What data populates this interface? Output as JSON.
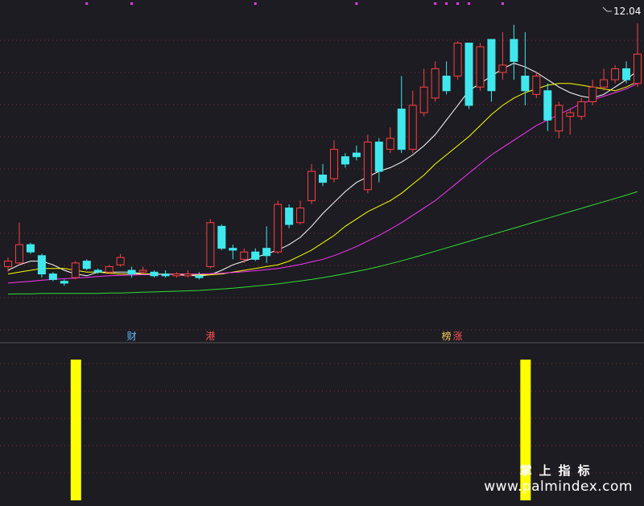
{
  "chart_data": [
    {
      "type": "candlestick",
      "title": "",
      "price_label": "12.04",
      "colors": {
        "up": "#ff4040",
        "down": "#40e8ee",
        "ma5": "#ffffff",
        "ma10": "#ffff00",
        "ma20": "#ff33ff",
        "ma60": "#33dd33",
        "background": "#1c1c22",
        "grid": "#8a2a2a"
      },
      "ylim": [
        3.5,
        12.5
      ],
      "x": [
        1,
        2,
        3,
        4,
        5,
        6,
        7,
        8,
        9,
        10,
        11,
        12,
        13,
        14,
        15,
        16,
        17,
        18,
        19,
        20,
        21,
        22,
        23,
        24,
        25,
        26,
        27,
        28,
        29,
        30,
        31,
        32,
        33,
        34,
        35,
        36,
        37,
        38,
        39,
        40,
        41,
        42,
        43,
        44,
        45,
        46,
        47,
        48,
        49,
        50,
        51,
        52,
        53,
        54,
        55,
        56,
        57
      ],
      "candles": [
        [
          5.4,
          5.55,
          5.25,
          5.65
        ],
        [
          5.5,
          6.0,
          5.45,
          6.6
        ],
        [
          6.0,
          5.8,
          5.75,
          6.05
        ],
        [
          5.7,
          5.2,
          5.1,
          5.75
        ],
        [
          5.2,
          5.05,
          5.0,
          5.25
        ],
        [
          5.0,
          4.95,
          4.88,
          5.05
        ],
        [
          5.1,
          5.5,
          5.05,
          5.55
        ],
        [
          5.55,
          5.35,
          5.3,
          5.6
        ],
        [
          5.3,
          5.25,
          5.2,
          5.35
        ],
        [
          5.25,
          5.4,
          5.2,
          5.45
        ],
        [
          5.45,
          5.65,
          5.4,
          5.75
        ],
        [
          5.3,
          5.2,
          5.1,
          5.4
        ],
        [
          5.25,
          5.3,
          5.2,
          5.4
        ],
        [
          5.25,
          5.15,
          5.1,
          5.3
        ],
        [
          5.2,
          5.15,
          5.1,
          5.3
        ],
        [
          5.15,
          5.2,
          5.1,
          5.25
        ],
        [
          5.15,
          5.2,
          5.1,
          5.3
        ],
        [
          5.15,
          5.1,
          5.05,
          5.25
        ],
        [
          5.4,
          6.6,
          5.35,
          6.7
        ],
        [
          6.5,
          5.9,
          5.85,
          6.55
        ],
        [
          5.9,
          5.85,
          5.6,
          6.0
        ],
        [
          5.6,
          5.8,
          5.5,
          5.9
        ],
        [
          5.8,
          5.6,
          5.55,
          5.9
        ],
        [
          5.9,
          5.7,
          5.5,
          6.5
        ],
        [
          5.8,
          7.1,
          5.75,
          7.2
        ],
        [
          7.0,
          6.55,
          6.45,
          7.1
        ],
        [
          6.6,
          7.0,
          6.55,
          7.2
        ],
        [
          7.2,
          8.0,
          7.1,
          8.2
        ],
        [
          7.9,
          7.7,
          7.6,
          8.2
        ],
        [
          7.8,
          8.6,
          7.7,
          8.85
        ],
        [
          8.4,
          8.2,
          8.1,
          8.5
        ],
        [
          8.5,
          8.4,
          8.3,
          8.7
        ],
        [
          7.5,
          8.8,
          7.4,
          9.0
        ],
        [
          8.8,
          8.0,
          7.7,
          8.9
        ],
        [
          8.6,
          8.9,
          8.5,
          9.2
        ],
        [
          9.7,
          8.6,
          8.5,
          10.6
        ],
        [
          8.6,
          9.8,
          8.5,
          10.2
        ],
        [
          9.6,
          10.3,
          9.5,
          10.8
        ],
        [
          10.0,
          10.8,
          9.9,
          11.0
        ],
        [
          10.6,
          10.2,
          10.1,
          11.0
        ],
        [
          10.6,
          11.5,
          10.5,
          11.55
        ],
        [
          11.5,
          9.8,
          9.7,
          11.5
        ],
        [
          10.3,
          11.4,
          10.2,
          11.5
        ],
        [
          11.6,
          10.2,
          9.9,
          11.6
        ],
        [
          10.7,
          10.9,
          10.5,
          11.8
        ],
        [
          11.6,
          11.0,
          10.5,
          12.0
        ],
        [
          10.6,
          10.2,
          9.8,
          11.8
        ],
        [
          10.1,
          10.6,
          10.0,
          10.7
        ],
        [
          10.2,
          9.4,
          9.1,
          10.4
        ],
        [
          9.1,
          9.8,
          8.9,
          9.9
        ],
        [
          9.5,
          9.6,
          9.0,
          9.7
        ],
        [
          9.5,
          9.9,
          9.4,
          10.0
        ],
        [
          9.9,
          10.3,
          9.8,
          10.5
        ],
        [
          10.3,
          10.5,
          10.2,
          10.8
        ],
        [
          10.5,
          10.8,
          10.4,
          10.9
        ],
        [
          10.8,
          10.5,
          10.4,
          11.0
        ],
        [
          10.4,
          11.2,
          10.3,
          12.04
        ]
      ],
      "series": [
        {
          "key": "ma5",
          "values": [
            5.3,
            5.45,
            5.55,
            5.55,
            5.45,
            5.3,
            5.2,
            5.15,
            5.25,
            5.25,
            5.25,
            5.25,
            5.2,
            5.2,
            5.2,
            5.18,
            5.16,
            5.15,
            5.18,
            5.3,
            5.45,
            5.55,
            5.65,
            5.75,
            5.85,
            6.0,
            6.2,
            6.5,
            6.85,
            7.15,
            7.45,
            7.7,
            7.85,
            8.0,
            8.1,
            8.25,
            8.45,
            8.7,
            9.0,
            9.4,
            9.8,
            10.2,
            10.4,
            10.6,
            10.8,
            10.95,
            10.85,
            10.7,
            10.5,
            10.3,
            10.15,
            10.05,
            10.0,
            10.1,
            10.3,
            10.5,
            10.75
          ]
        },
        {
          "key": "ma10",
          "values": [
            5.2,
            5.25,
            5.3,
            5.35,
            5.35,
            5.35,
            5.3,
            5.25,
            5.25,
            5.22,
            5.2,
            5.2,
            5.2,
            5.2,
            5.2,
            5.2,
            5.19,
            5.18,
            5.18,
            5.2,
            5.25,
            5.3,
            5.35,
            5.4,
            5.45,
            5.55,
            5.7,
            5.85,
            6.05,
            6.25,
            6.5,
            6.7,
            6.9,
            7.05,
            7.2,
            7.4,
            7.65,
            7.9,
            8.2,
            8.45,
            8.7,
            8.95,
            9.25,
            9.55,
            9.8,
            10.0,
            10.15,
            10.25,
            10.35,
            10.4,
            10.4,
            10.35,
            10.3,
            10.25,
            10.2,
            10.3,
            10.45
          ]
        },
        {
          "key": "ma20",
          "values": [
            4.95,
            4.98,
            5.0,
            5.03,
            5.05,
            5.07,
            5.09,
            5.11,
            5.13,
            5.15,
            5.16,
            5.17,
            5.18,
            5.18,
            5.19,
            5.19,
            5.2,
            5.2,
            5.21,
            5.22,
            5.24,
            5.26,
            5.29,
            5.32,
            5.35,
            5.4,
            5.46,
            5.53,
            5.6,
            5.7,
            5.82,
            5.95,
            6.1,
            6.25,
            6.42,
            6.6,
            6.8,
            7.0,
            7.2,
            7.45,
            7.7,
            7.95,
            8.2,
            8.45,
            8.65,
            8.85,
            9.05,
            9.25,
            9.4,
            9.55,
            9.7,
            9.85,
            9.95,
            10.05,
            10.15,
            10.25,
            10.4
          ]
        },
        {
          "key": "ma60",
          "values": [
            4.65,
            4.66,
            4.66,
            4.67,
            4.67,
            4.67,
            4.67,
            4.67,
            4.67,
            4.68,
            4.68,
            4.69,
            4.7,
            4.71,
            4.72,
            4.73,
            4.74,
            4.75,
            4.77,
            4.79,
            4.81,
            4.84,
            4.87,
            4.9,
            4.93,
            4.97,
            5.01,
            5.05,
            5.1,
            5.15,
            5.21,
            5.27,
            5.33,
            5.4,
            5.48,
            5.56,
            5.64,
            5.73,
            5.82,
            5.91,
            6.0,
            6.09,
            6.18,
            6.27,
            6.36,
            6.45,
            6.54,
            6.63,
            6.72,
            6.81,
            6.9,
            6.99,
            7.08,
            7.17,
            7.26,
            7.35,
            7.45
          ]
        }
      ],
      "markers": [
        {
          "x": 12,
          "label": "财",
          "color": "#66bbff"
        },
        {
          "x": 19,
          "label": "港",
          "color": "#ff5555"
        },
        {
          "x": 40,
          "label": "榜",
          "color": "#ffcc55"
        },
        {
          "x": 41,
          "label": "涨",
          "color": "#ff5555"
        }
      ],
      "top_dots_x": [
        8,
        12,
        23,
        32,
        39,
        40,
        41,
        42,
        45
      ]
    },
    {
      "type": "bar",
      "bar_color": "#ffff00",
      "x_bars": [
        7,
        47
      ],
      "values": [
        1,
        1
      ],
      "ylim": [
        0,
        1
      ]
    }
  ],
  "watermark": {
    "cn": "掌上指标",
    "url": "www.palmindex.com"
  }
}
